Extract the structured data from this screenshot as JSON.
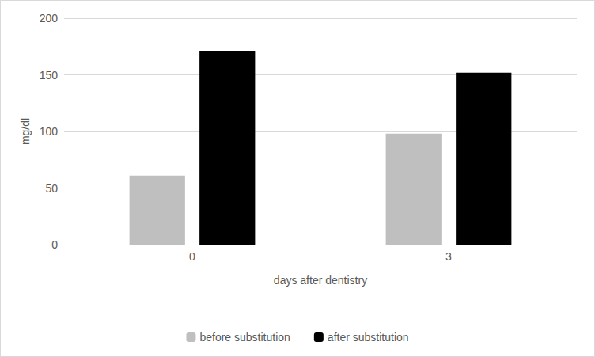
{
  "chart_data": {
    "type": "bar",
    "x_label": "days after dentistry",
    "y_label": "mg/dl",
    "categories": [
      "0",
      "3"
    ],
    "series": [
      {
        "name": "before substitution",
        "color": "#bfbfbf",
        "values": [
          61,
          98
        ]
      },
      {
        "name": "after substitution",
        "color": "#000000",
        "values": [
          171,
          152
        ]
      }
    ],
    "ylim": [
      0,
      200
    ],
    "yticks": [
      0,
      50,
      100,
      150,
      200
    ],
    "grid": true,
    "legend": "bottom"
  }
}
